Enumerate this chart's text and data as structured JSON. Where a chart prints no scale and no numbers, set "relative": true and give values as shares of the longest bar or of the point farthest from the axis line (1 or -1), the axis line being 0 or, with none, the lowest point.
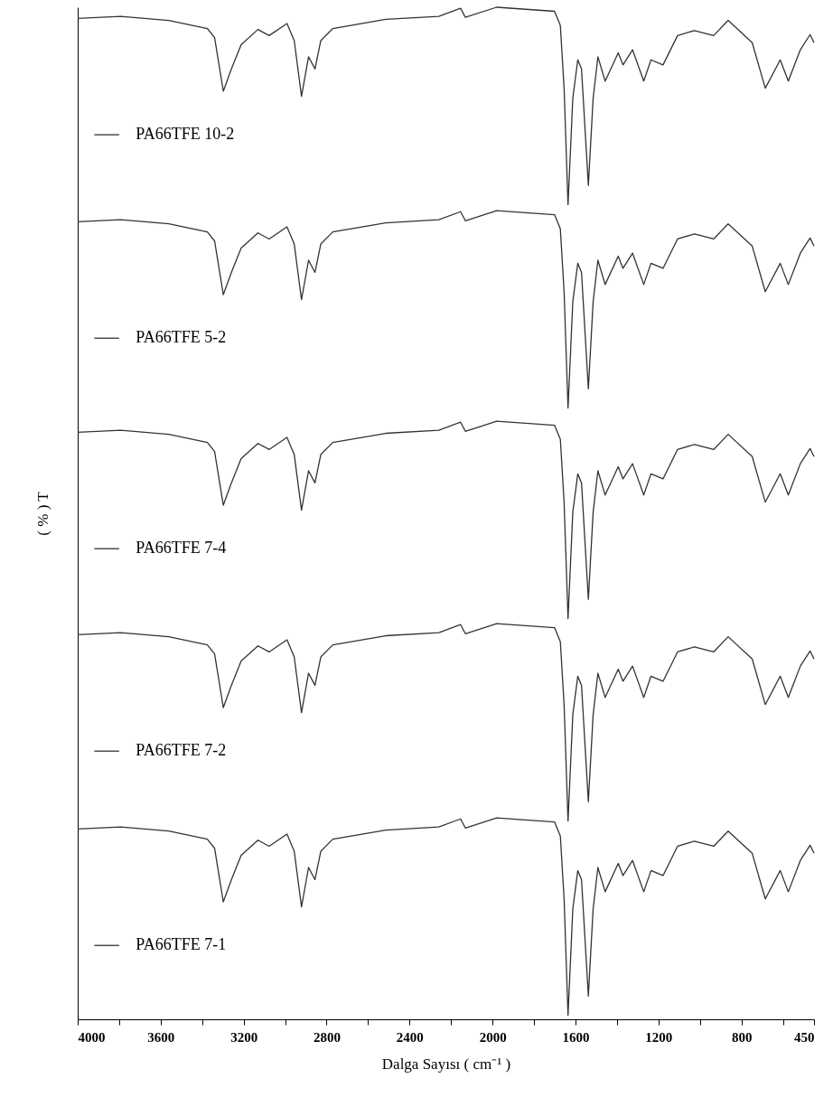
{
  "chart_data": {
    "type": "line",
    "relative": true,
    "xlabel": "Dalga Sayısı ( cm⁻¹ )",
    "ylabel": "( % ) T",
    "xlim": [
      4000,
      450
    ],
    "xticks": [
      4000,
      {
        "value": 3800,
        "label": null
      },
      3600,
      {
        "value": 3400,
        "label": null
      },
      3200,
      {
        "value": 3000,
        "label": null
      },
      2800,
      {
        "value": 2600,
        "label": null
      },
      2400,
      {
        "value": 2200,
        "label": null
      },
      2000,
      {
        "value": 1800,
        "label": null
      },
      1600,
      {
        "value": 1400,
        "label": null
      },
      1200,
      {
        "value": 1000,
        "label": null
      },
      800,
      {
        "value": 600,
        "label": null
      },
      450
    ],
    "x": [
      4000,
      3793,
      3561,
      3375,
      3340,
      3298,
      3259,
      3212,
      3131,
      3077,
      2991,
      2956,
      2921,
      2887,
      2856,
      2828,
      2770,
      2515,
      2259,
      2154,
      2131,
      1980,
      1701,
      1673,
      1655,
      1636,
      1613,
      1589,
      1571,
      1538,
      1515,
      1492,
      1457,
      1394,
      1371,
      1325,
      1271,
      1236,
      1178,
      1108,
      1027,
      934,
      864,
      748,
      685,
      613,
      574,
      516,
      469,
      450
    ],
    "line_style": "solid",
    "marker": "none",
    "legend": "left",
    "series": [
      {
        "name": "PA66TFE 10-2",
        "color": "#333333",
        "values": [
          0.989,
          0.991,
          0.987,
          0.979,
          0.97,
          0.917,
          0.939,
          0.963,
          0.978,
          0.972,
          0.984,
          0.967,
          0.912,
          0.951,
          0.939,
          0.967,
          0.979,
          0.988,
          0.991,
          0.999,
          0.99,
          1.0,
          0.996,
          0.982,
          0.92,
          0.805,
          0.91,
          0.948,
          0.939,
          0.824,
          0.91,
          0.951,
          0.927,
          0.955,
          0.943,
          0.958,
          0.927,
          0.948,
          0.943,
          0.972,
          0.977,
          0.972,
          0.987,
          0.965,
          0.92,
          0.948,
          0.927,
          0.958,
          0.973,
          0.965
        ]
      },
      {
        "name": "PA66TFE 5-2",
        "color": "#333333",
        "values": [
          0.788,
          0.79,
          0.786,
          0.778,
          0.769,
          0.716,
          0.738,
          0.762,
          0.777,
          0.771,
          0.783,
          0.766,
          0.711,
          0.75,
          0.738,
          0.766,
          0.778,
          0.787,
          0.79,
          0.798,
          0.789,
          0.799,
          0.795,
          0.781,
          0.719,
          0.604,
          0.709,
          0.747,
          0.738,
          0.623,
          0.709,
          0.75,
          0.726,
          0.754,
          0.742,
          0.757,
          0.726,
          0.747,
          0.742,
          0.771,
          0.776,
          0.771,
          0.786,
          0.764,
          0.719,
          0.747,
          0.726,
          0.757,
          0.772,
          0.764
        ]
      },
      {
        "name": "PA66TFE 7-4",
        "color": "#333333",
        "values": [
          0.58,
          0.582,
          0.578,
          0.57,
          0.561,
          0.508,
          0.53,
          0.554,
          0.569,
          0.563,
          0.575,
          0.558,
          0.503,
          0.542,
          0.53,
          0.558,
          0.57,
          0.579,
          0.582,
          0.59,
          0.581,
          0.591,
          0.587,
          0.573,
          0.511,
          0.396,
          0.501,
          0.539,
          0.53,
          0.415,
          0.501,
          0.542,
          0.518,
          0.546,
          0.534,
          0.549,
          0.518,
          0.539,
          0.534,
          0.563,
          0.568,
          0.563,
          0.578,
          0.556,
          0.511,
          0.539,
          0.518,
          0.549,
          0.564,
          0.556
        ]
      },
      {
        "name": "PA66TFE 7-2",
        "color": "#333333",
        "values": [
          0.38,
          0.382,
          0.378,
          0.37,
          0.361,
          0.308,
          0.33,
          0.354,
          0.369,
          0.363,
          0.375,
          0.358,
          0.303,
          0.342,
          0.33,
          0.358,
          0.37,
          0.379,
          0.382,
          0.39,
          0.381,
          0.391,
          0.387,
          0.373,
          0.311,
          0.196,
          0.301,
          0.339,
          0.33,
          0.215,
          0.301,
          0.342,
          0.318,
          0.346,
          0.334,
          0.349,
          0.318,
          0.339,
          0.334,
          0.363,
          0.368,
          0.363,
          0.378,
          0.356,
          0.311,
          0.339,
          0.318,
          0.349,
          0.364,
          0.356
        ]
      },
      {
        "name": "PA66TFE 7-1",
        "color": "#333333",
        "values": [
          0.188,
          0.19,
          0.186,
          0.178,
          0.169,
          0.116,
          0.138,
          0.162,
          0.177,
          0.171,
          0.183,
          0.166,
          0.111,
          0.15,
          0.138,
          0.166,
          0.178,
          0.187,
          0.19,
          0.198,
          0.189,
          0.199,
          0.195,
          0.181,
          0.119,
          0.004,
          0.109,
          0.147,
          0.138,
          0.023,
          0.109,
          0.15,
          0.126,
          0.154,
          0.142,
          0.157,
          0.126,
          0.147,
          0.142,
          0.171,
          0.176,
          0.171,
          0.186,
          0.164,
          0.119,
          0.147,
          0.126,
          0.157,
          0.172,
          0.164
        ]
      }
    ]
  }
}
